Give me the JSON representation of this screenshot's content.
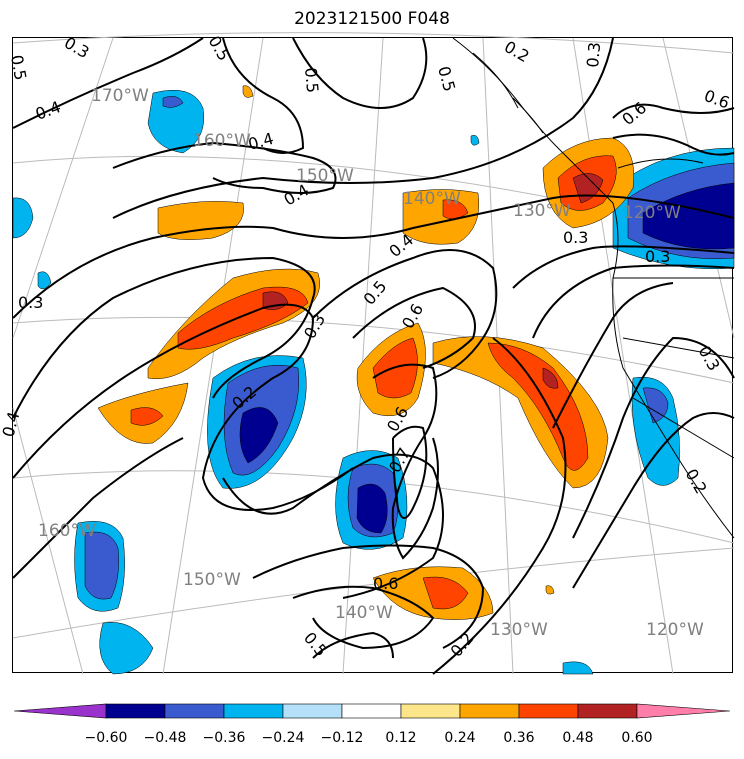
{
  "title": "2023121500 F048",
  "map": {
    "projection": "polar-stereographic",
    "region": "North Pacific / Western North America",
    "grid_color": "#bbbbbb",
    "lon_label_color": "#808080",
    "lon_labels": [
      "170°W",
      "160°W",
      "150°W",
      "140°W",
      "130°W",
      "120°W",
      "160°W",
      "150°W",
      "140°W",
      "130°W",
      "120°W"
    ],
    "contour_color": "#000000",
    "contour_labels": [
      "0.3",
      "0.5",
      "0.4",
      "0.5",
      "0.5",
      "0.2",
      "0.3",
      "0.6",
      "0.6",
      "0.5",
      "0.4",
      "0.4",
      "0.4",
      "0.3",
      "0.3",
      "0.3",
      "0.2",
      "0.5",
      "0.6",
      "0.6",
      "0.7",
      "0.6",
      "0.5",
      "0.2",
      "0.3",
      "0.4",
      "0.3",
      "0.2"
    ]
  },
  "colorbar": {
    "colors": [
      "#9933cc",
      "#000090",
      "#3a5ad0",
      "#00b4f0",
      "#b4e0fa",
      "#ffffff",
      "#fde68a",
      "#ffa500",
      "#ff4400",
      "#b22222",
      "#ff7faa"
    ],
    "tick_labels": [
      "−0.60",
      "−0.48",
      "−0.36",
      "−0.24",
      "−0.12",
      "0.12",
      "0.24",
      "0.36",
      "0.48",
      "0.60"
    ],
    "bounds": [
      -0.6,
      -0.48,
      -0.36,
      -0.24,
      -0.12,
      0.12,
      0.24,
      0.36,
      0.48,
      0.6
    ],
    "extend": "both"
  }
}
